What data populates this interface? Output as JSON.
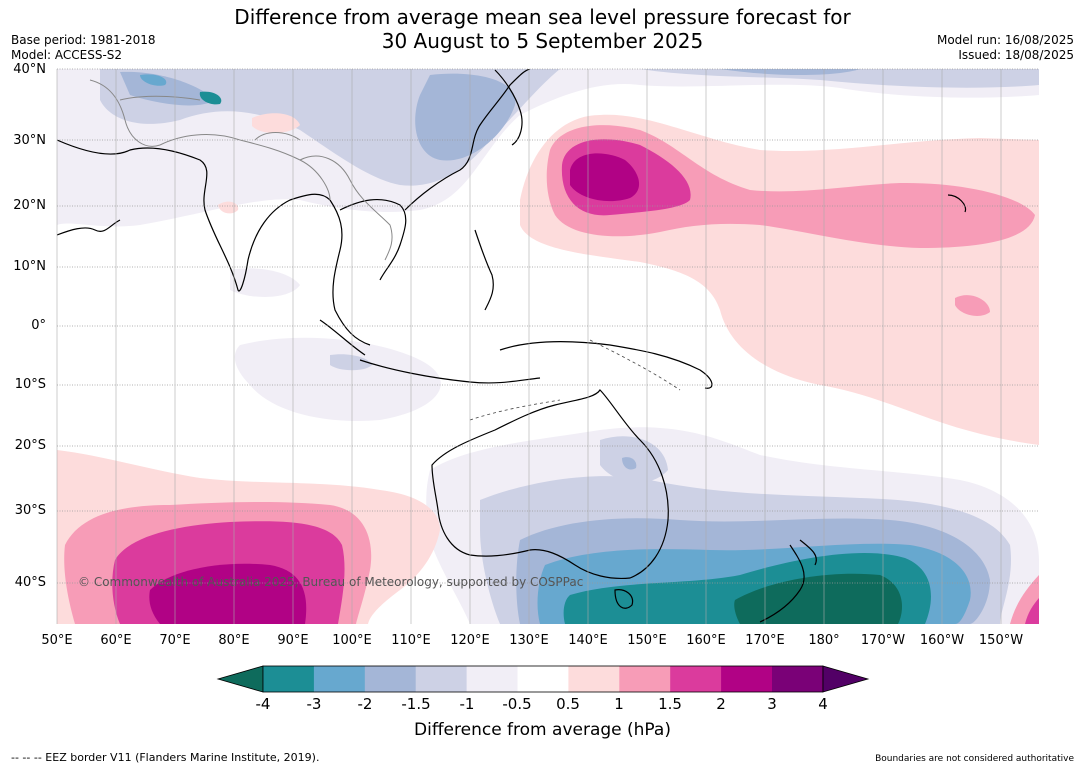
{
  "header": {
    "title_line1": "Difference from average mean sea level pressure forecast for",
    "title_line2": "30 August to 5 September 2025",
    "base_period": "Base period: 1981-2018",
    "model": "Model: ACCESS-S2",
    "model_run": "Model run: 16/08/2025",
    "issued": "Issued: 18/08/2025"
  },
  "map": {
    "latitude_labels": [
      "40°N",
      "30°N",
      "20°N",
      "10°N",
      "0°",
      "10°S",
      "20°S",
      "30°S",
      "40°S"
    ],
    "longitude_labels": [
      "50°E",
      "60°E",
      "70°E",
      "80°E",
      "90°E",
      "100°E",
      "110°E",
      "120°E",
      "130°E",
      "140°E",
      "150°E",
      "160°E",
      "170°E",
      "180°",
      "170°W",
      "160°W",
      "150°W"
    ],
    "credit": "© Commonwealth of Australia 2025, Bureau of Meteorology, supported by COSPPac"
  },
  "legend": {
    "colors": [
      "#0e6b5c",
      "#1c8e95",
      "#67a8cf",
      "#a4b6d7",
      "#cdd1e5",
      "#f1eef6",
      "#ffffff",
      "#fddcdc",
      "#f79cb7",
      "#db3b9d",
      "#b10285",
      "#7a0177",
      "#520066"
    ],
    "tick_labels": [
      "-4",
      "-3",
      "-2",
      "-1.5",
      "-1",
      "-0.5",
      "0.5",
      "1",
      "1.5",
      "2",
      "3",
      "4"
    ],
    "label": "Difference from average (hPa)"
  },
  "footer": {
    "eez_note": "--  --  -- EEZ border V11 (Flanders Marine Institute, 2019).",
    "boundaries_note": "Boundaries are not considered authoritative"
  }
}
